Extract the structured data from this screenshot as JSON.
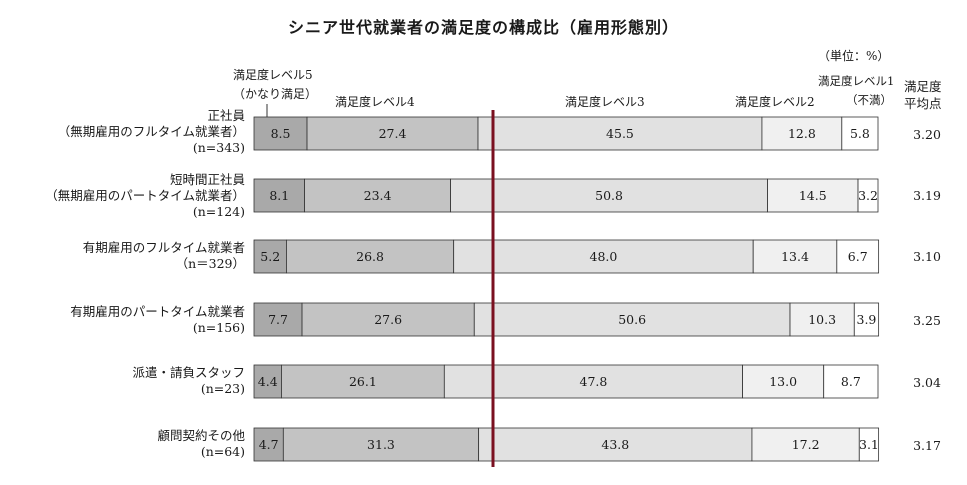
{
  "chart_data": {
    "type": "bar",
    "stacked": true,
    "orientation": "horizontal",
    "percent_stacked": true,
    "title": "シニア世代就業者の満足度の構成比（雇用形態別）",
    "unit": "（単位：%）",
    "level_headers": [
      {
        "lines": [
          "満足度レベル5",
          "（かなり満足）"
        ]
      },
      {
        "lines": [
          "満足度レベル4"
        ]
      },
      {
        "lines": [
          "満足度レベル3"
        ]
      },
      {
        "lines": [
          "満足度レベル2"
        ]
      },
      {
        "lines": [
          "満足度レベル1",
          "（不満）"
        ]
      }
    ],
    "avg_header": [
      "満足度",
      "平均点"
    ],
    "categories": [
      {
        "lines": [
          "正社員",
          "（無期雇用のフルタイム就業者）",
          "(n=343)"
        ]
      },
      {
        "lines": [
          "短時間正社員",
          "（無期雇用のパートタイム就業者）",
          "(n=124)"
        ]
      },
      {
        "lines": [
          "有期雇用のフルタイム就業者",
          "（n＝329）"
        ]
      },
      {
        "lines": [
          "有期雇用のパートタイム就業者",
          "(n=156)"
        ]
      },
      {
        "lines": [
          "派遣・請負スタッフ",
          "(n=23)"
        ]
      },
      {
        "lines": [
          "顧問契約その他",
          "(n=64)"
        ]
      }
    ],
    "series": [
      {
        "values": [
          "8.5",
          "8.1",
          "5.2",
          "7.7",
          "4.4",
          "4.7"
        ],
        "color": "#a9a9a9"
      },
      {
        "values": [
          "27.4",
          "23.4",
          "26.8",
          "27.6",
          "26.1",
          "31.3"
        ],
        "color": "#c3c3c3"
      },
      {
        "values": [
          "45.5",
          "50.8",
          "48.0",
          "50.6",
          "47.8",
          "43.8"
        ],
        "color": "#e1e1e1"
      },
      {
        "values": [
          "12.8",
          "14.5",
          "13.4",
          "10.3",
          "13.0",
          "17.2"
        ],
        "color": "#f0f0f0"
      },
      {
        "values": [
          "5.8",
          "3.2",
          "6.7",
          "3.9",
          "8.7",
          "3.1"
        ],
        "color": "#ffffff"
      }
    ],
    "averages": [
      "3.20",
      "3.19",
      "3.10",
      "3.25",
      "3.04",
      "3.17"
    ],
    "midline_color": "#7a1020",
    "xlim": [
      0,
      100
    ]
  }
}
